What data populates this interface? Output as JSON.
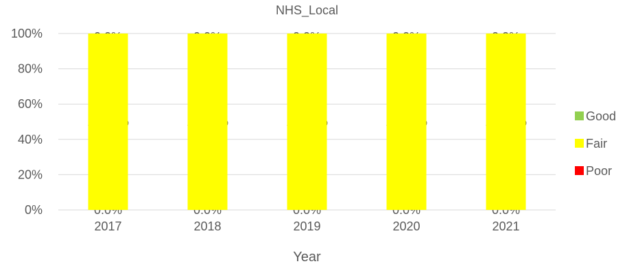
{
  "chart_data": {
    "type": "bar",
    "stacked": true,
    "percent_stacked": true,
    "title": "NHS_Local",
    "xlabel": "Year",
    "ylabel": "",
    "categories": [
      "2017",
      "2018",
      "2019",
      "2020",
      "2021"
    ],
    "ylim": [
      0,
      100
    ],
    "yticks": [
      "0%",
      "20%",
      "40%",
      "60%",
      "80%",
      "100%"
    ],
    "grid": true,
    "legend_position": "right",
    "series": [
      {
        "name": "Poor",
        "color": "#ff0000",
        "values": [
          0,
          0,
          0,
          0,
          0
        ],
        "labels": [
          "0.0%",
          "0.0%",
          "0.0%",
          "0.0%",
          "0.0%"
        ]
      },
      {
        "name": "Fair",
        "color": "#ffff00",
        "values": [
          100,
          100,
          100,
          100,
          100
        ],
        "labels": [
          "100.0%",
          "100.0%",
          "100.0%",
          "100.0%",
          "100.0%"
        ]
      },
      {
        "name": "Good",
        "color": "#92d050",
        "values": [
          0,
          0,
          0,
          0,
          0
        ],
        "labels": [
          "0.0%",
          "0.0%",
          "0.0%",
          "0.0%",
          "0.0%"
        ]
      }
    ],
    "legend_order": [
      "Good",
      "Fair",
      "Poor"
    ]
  }
}
